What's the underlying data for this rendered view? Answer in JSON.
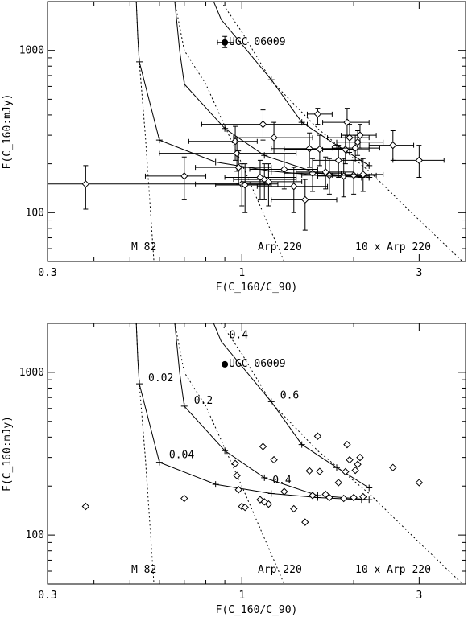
{
  "chart_data": [
    {
      "type": "scatter",
      "title": "",
      "xlabel": "F(C_160/C_90)",
      "ylabel": "F(C_160:mJy)",
      "xscale": "log",
      "yscale": "log",
      "xlim": [
        0.3,
        4.0
      ],
      "ylim": [
        50,
        2000
      ],
      "xticks": [
        0.3,
        1,
        3
      ],
      "xticklabels": [
        "0.3",
        "1",
        "3"
      ],
      "yticks": [
        100,
        1000
      ],
      "yticklabels": [
        "100",
        "1000"
      ],
      "grid": false,
      "legend": "none",
      "error_bars": true,
      "sources": [
        {
          "x": 0.38,
          "y": 150,
          "xerr": [
            0.3,
            1.2
          ],
          "yerr": [
            105,
            195
          ]
        },
        {
          "x": 0.7,
          "y": 168,
          "xerr": [
            0.55,
            0.8
          ],
          "yerr": [
            120,
            220
          ]
        },
        {
          "x": 0.9,
          "y": 1120,
          "xerr": [
            0.86,
            0.95
          ],
          "yerr": [
            1040,
            1220
          ]
        },
        {
          "x": 0.96,
          "y": 275,
          "xerr": [
            0.72,
            1.1
          ],
          "yerr": [
            210,
            340
          ]
        },
        {
          "x": 0.97,
          "y": 232,
          "xerr": [
            0.6,
            1.4
          ],
          "yerr": [
            180,
            290
          ]
        },
        {
          "x": 0.98,
          "y": 190,
          "xerr": [
            0.75,
            1.2
          ],
          "yerr": [
            150,
            240
          ]
        },
        {
          "x": 1.0,
          "y": 150,
          "xerr": [
            0.75,
            1.25
          ],
          "yerr": [
            110,
            200
          ]
        },
        {
          "x": 1.02,
          "y": 148,
          "xerr": [
            0.85,
            1.2
          ],
          "yerr": [
            100,
            200
          ]
        },
        {
          "x": 1.12,
          "y": 165,
          "xerr": [
            0.9,
            1.4
          ],
          "yerr": [
            120,
            210
          ]
        },
        {
          "x": 1.14,
          "y": 350,
          "xerr": [
            0.78,
            1.5
          ],
          "yerr": [
            280,
            430
          ]
        },
        {
          "x": 1.15,
          "y": 160,
          "xerr": [
            0.95,
            1.4
          ],
          "yerr": [
            120,
            200
          ]
        },
        {
          "x": 1.18,
          "y": 155,
          "xerr": [
            1.0,
            1.45
          ],
          "yerr": [
            110,
            200
          ]
        },
        {
          "x": 1.22,
          "y": 290,
          "xerr": [
            0.95,
            1.55
          ],
          "yerr": [
            230,
            360
          ]
        },
        {
          "x": 1.3,
          "y": 185,
          "xerr": [
            1.05,
            1.6
          ],
          "yerr": [
            140,
            230
          ]
        },
        {
          "x": 1.38,
          "y": 145,
          "xerr": [
            1.1,
            1.7
          ],
          "yerr": [
            100,
            190
          ]
        },
        {
          "x": 1.48,
          "y": 120,
          "xerr": [
            1.2,
            1.8
          ],
          "yerr": [
            78,
            160
          ]
        },
        {
          "x": 1.52,
          "y": 248,
          "xerr": [
            1.2,
            1.9
          ],
          "yerr": [
            190,
            310
          ]
        },
        {
          "x": 1.55,
          "y": 175,
          "xerr": [
            1.3,
            1.85
          ],
          "yerr": [
            135,
            215
          ]
        },
        {
          "x": 1.6,
          "y": 405,
          "xerr": [
            1.5,
            1.75
          ],
          "yerr": [
            350,
            440
          ]
        },
        {
          "x": 1.62,
          "y": 246,
          "xerr": [
            1.3,
            2.0
          ],
          "yerr": [
            195,
            300
          ]
        },
        {
          "x": 1.68,
          "y": 178,
          "xerr": [
            1.4,
            2.0
          ],
          "yerr": [
            140,
            220
          ]
        },
        {
          "x": 1.72,
          "y": 170,
          "xerr": [
            1.45,
            2.05
          ],
          "yerr": [
            130,
            215
          ]
        },
        {
          "x": 1.82,
          "y": 210,
          "xerr": [
            1.55,
            2.1
          ],
          "yerr": [
            165,
            260
          ]
        },
        {
          "x": 1.88,
          "y": 168,
          "xerr": [
            1.6,
            2.2
          ],
          "yerr": [
            125,
            215
          ]
        },
        {
          "x": 1.9,
          "y": 245,
          "xerr": [
            1.65,
            2.2
          ],
          "yerr": [
            200,
            300
          ]
        },
        {
          "x": 1.92,
          "y": 360,
          "xerr": [
            1.65,
            2.2
          ],
          "yerr": [
            290,
            440
          ]
        },
        {
          "x": 1.95,
          "y": 290,
          "xerr": [
            1.7,
            2.2
          ],
          "yerr": [
            235,
            350
          ]
        },
        {
          "x": 2.0,
          "y": 170,
          "xerr": [
            1.75,
            2.3
          ],
          "yerr": [
            130,
            210
          ]
        },
        {
          "x": 2.02,
          "y": 250,
          "xerr": [
            1.75,
            2.35
          ],
          "yerr": [
            205,
            300
          ]
        },
        {
          "x": 2.05,
          "y": 272,
          "xerr": [
            1.8,
            2.4
          ],
          "yerr": [
            225,
            320
          ]
        },
        {
          "x": 2.08,
          "y": 300,
          "xerr": [
            1.85,
            2.3
          ],
          "yerr": [
            250,
            350
          ]
        },
        {
          "x": 2.12,
          "y": 172,
          "xerr": [
            1.9,
            2.4
          ],
          "yerr": [
            135,
            215
          ]
        },
        {
          "x": 2.55,
          "y": 260,
          "xerr": [
            2.2,
            2.9
          ],
          "yerr": [
            210,
            320
          ]
        },
        {
          "x": 3.0,
          "y": 210,
          "xerr": [
            2.55,
            3.5
          ],
          "yerr": [
            165,
            260
          ]
        }
      ],
      "models": [
        {
          "name": "M 82",
          "x": [
            0.52,
            0.525,
            0.53,
            0.55,
            0.58
          ],
          "y": [
            2000,
            1200,
            850,
            300,
            50
          ]
        },
        {
          "name": "Arp 220",
          "x": [
            0.66,
            0.7,
            0.8,
            1.0,
            1.3
          ],
          "y": [
            2000,
            1000,
            620,
            200,
            50
          ]
        },
        {
          "name": "10 x Arp 220",
          "x": [
            0.88,
            1.0,
            1.2,
            1.6,
            2.2,
            3.0,
            4.0
          ],
          "y": [
            2000,
            1300,
            650,
            330,
            180,
            90,
            48
          ]
        }
      ],
      "tracks": [
        {
          "x": [
            0.52,
            0.525,
            0.53,
            0.6,
            0.85,
            1.2,
            1.6,
            2.1
          ],
          "y": [
            2000,
            1200,
            850,
            280,
            205,
            180,
            170,
            165
          ]
        },
        {
          "x": [
            0.66,
            0.68,
            0.7,
            0.9,
            1.15,
            1.6,
            2.2
          ],
          "y": [
            2000,
            1000,
            620,
            330,
            225,
            175,
            165
          ]
        },
        {
          "x": [
            0.84,
            0.88,
            1.2,
            1.45,
            1.8,
            2.2
          ],
          "y": [
            2000,
            1550,
            660,
            360,
            260,
            195
          ]
        }
      ],
      "labeled_points": [
        {
          "label": "UGC 06009",
          "x": 0.9,
          "y": 1120
        }
      ],
      "annotations": [
        "M 82",
        "Arp 220",
        "10 x Arp 220"
      ]
    },
    {
      "type": "scatter",
      "title": "",
      "xlabel": "F(C_160/C_90)",
      "ylabel": "F(C_160:mJy)",
      "xscale": "log",
      "yscale": "log",
      "xlim": [
        0.3,
        4.0
      ],
      "ylim": [
        50,
        2000
      ],
      "xticks": [
        0.3,
        1,
        3
      ],
      "xticklabels": [
        "0.3",
        "1",
        "3"
      ],
      "yticks": [
        100,
        1000
      ],
      "yticklabels": [
        "100",
        "1000"
      ],
      "grid": false,
      "legend": "none",
      "error_bars": false,
      "sources": [
        {
          "x": 0.38,
          "y": 150
        },
        {
          "x": 0.7,
          "y": 168
        },
        {
          "x": 0.9,
          "y": 1120
        },
        {
          "x": 0.96,
          "y": 275
        },
        {
          "x": 0.97,
          "y": 232
        },
        {
          "x": 0.98,
          "y": 190
        },
        {
          "x": 1.0,
          "y": 150
        },
        {
          "x": 1.02,
          "y": 148
        },
        {
          "x": 1.12,
          "y": 165
        },
        {
          "x": 1.14,
          "y": 350
        },
        {
          "x": 1.15,
          "y": 160
        },
        {
          "x": 1.18,
          "y": 155
        },
        {
          "x": 1.22,
          "y": 290
        },
        {
          "x": 1.3,
          "y": 185
        },
        {
          "x": 1.38,
          "y": 145
        },
        {
          "x": 1.48,
          "y": 120
        },
        {
          "x": 1.52,
          "y": 248
        },
        {
          "x": 1.55,
          "y": 175
        },
        {
          "x": 1.6,
          "y": 405
        },
        {
          "x": 1.62,
          "y": 246
        },
        {
          "x": 1.68,
          "y": 178
        },
        {
          "x": 1.72,
          "y": 170
        },
        {
          "x": 1.82,
          "y": 210
        },
        {
          "x": 1.88,
          "y": 168
        },
        {
          "x": 1.9,
          "y": 245
        },
        {
          "x": 1.92,
          "y": 360
        },
        {
          "x": 1.95,
          "y": 290
        },
        {
          "x": 2.0,
          "y": 170
        },
        {
          "x": 2.02,
          "y": 250
        },
        {
          "x": 2.05,
          "y": 272
        },
        {
          "x": 2.08,
          "y": 300
        },
        {
          "x": 2.12,
          "y": 172
        },
        {
          "x": 2.55,
          "y": 260
        },
        {
          "x": 3.0,
          "y": 210
        }
      ],
      "models": [
        {
          "name": "M 82",
          "x": [
            0.52,
            0.525,
            0.53,
            0.55,
            0.58
          ],
          "y": [
            2000,
            1200,
            850,
            300,
            50
          ]
        },
        {
          "name": "Arp 220",
          "x": [
            0.66,
            0.7,
            0.8,
            1.0,
            1.3
          ],
          "y": [
            2000,
            1000,
            620,
            200,
            50
          ]
        },
        {
          "name": "10 x Arp 220",
          "x": [
            0.88,
            1.0,
            1.2,
            1.6,
            2.2,
            3.0,
            4.0
          ],
          "y": [
            2000,
            1300,
            650,
            330,
            180,
            90,
            48
          ]
        }
      ],
      "tracks": [
        {
          "x": [
            0.52,
            0.525,
            0.53,
            0.6,
            0.85,
            1.2,
            1.6,
            2.1
          ],
          "y": [
            2000,
            1200,
            850,
            280,
            205,
            180,
            170,
            165
          ]
        },
        {
          "x": [
            0.66,
            0.68,
            0.7,
            0.9,
            1.15,
            1.6,
            2.2
          ],
          "y": [
            2000,
            1000,
            620,
            330,
            225,
            175,
            165
          ]
        },
        {
          "x": [
            0.84,
            0.88,
            1.2,
            1.45,
            1.8,
            2.2
          ],
          "y": [
            2000,
            1550,
            660,
            360,
            260,
            195
          ]
        }
      ],
      "labeled_points": [
        {
          "label": "UGC 06009",
          "x": 0.9,
          "y": 1120
        }
      ],
      "annotations": [
        "M 82",
        "Arp 220",
        "10 x Arp 220"
      ],
      "track_value_labels": [
        {
          "text": "0.02",
          "x": 0.53,
          "y": 850
        },
        {
          "text": "0.04",
          "x": 0.6,
          "y": 280
        },
        {
          "text": "0.2",
          "x": 0.7,
          "y": 620
        },
        {
          "text": "0.4",
          "x": 1.15,
          "y": 225
        },
        {
          "text": "0.4",
          "x": 0.88,
          "y": 1550
        },
        {
          "text": "0.6",
          "x": 1.2,
          "y": 660
        }
      ]
    }
  ]
}
